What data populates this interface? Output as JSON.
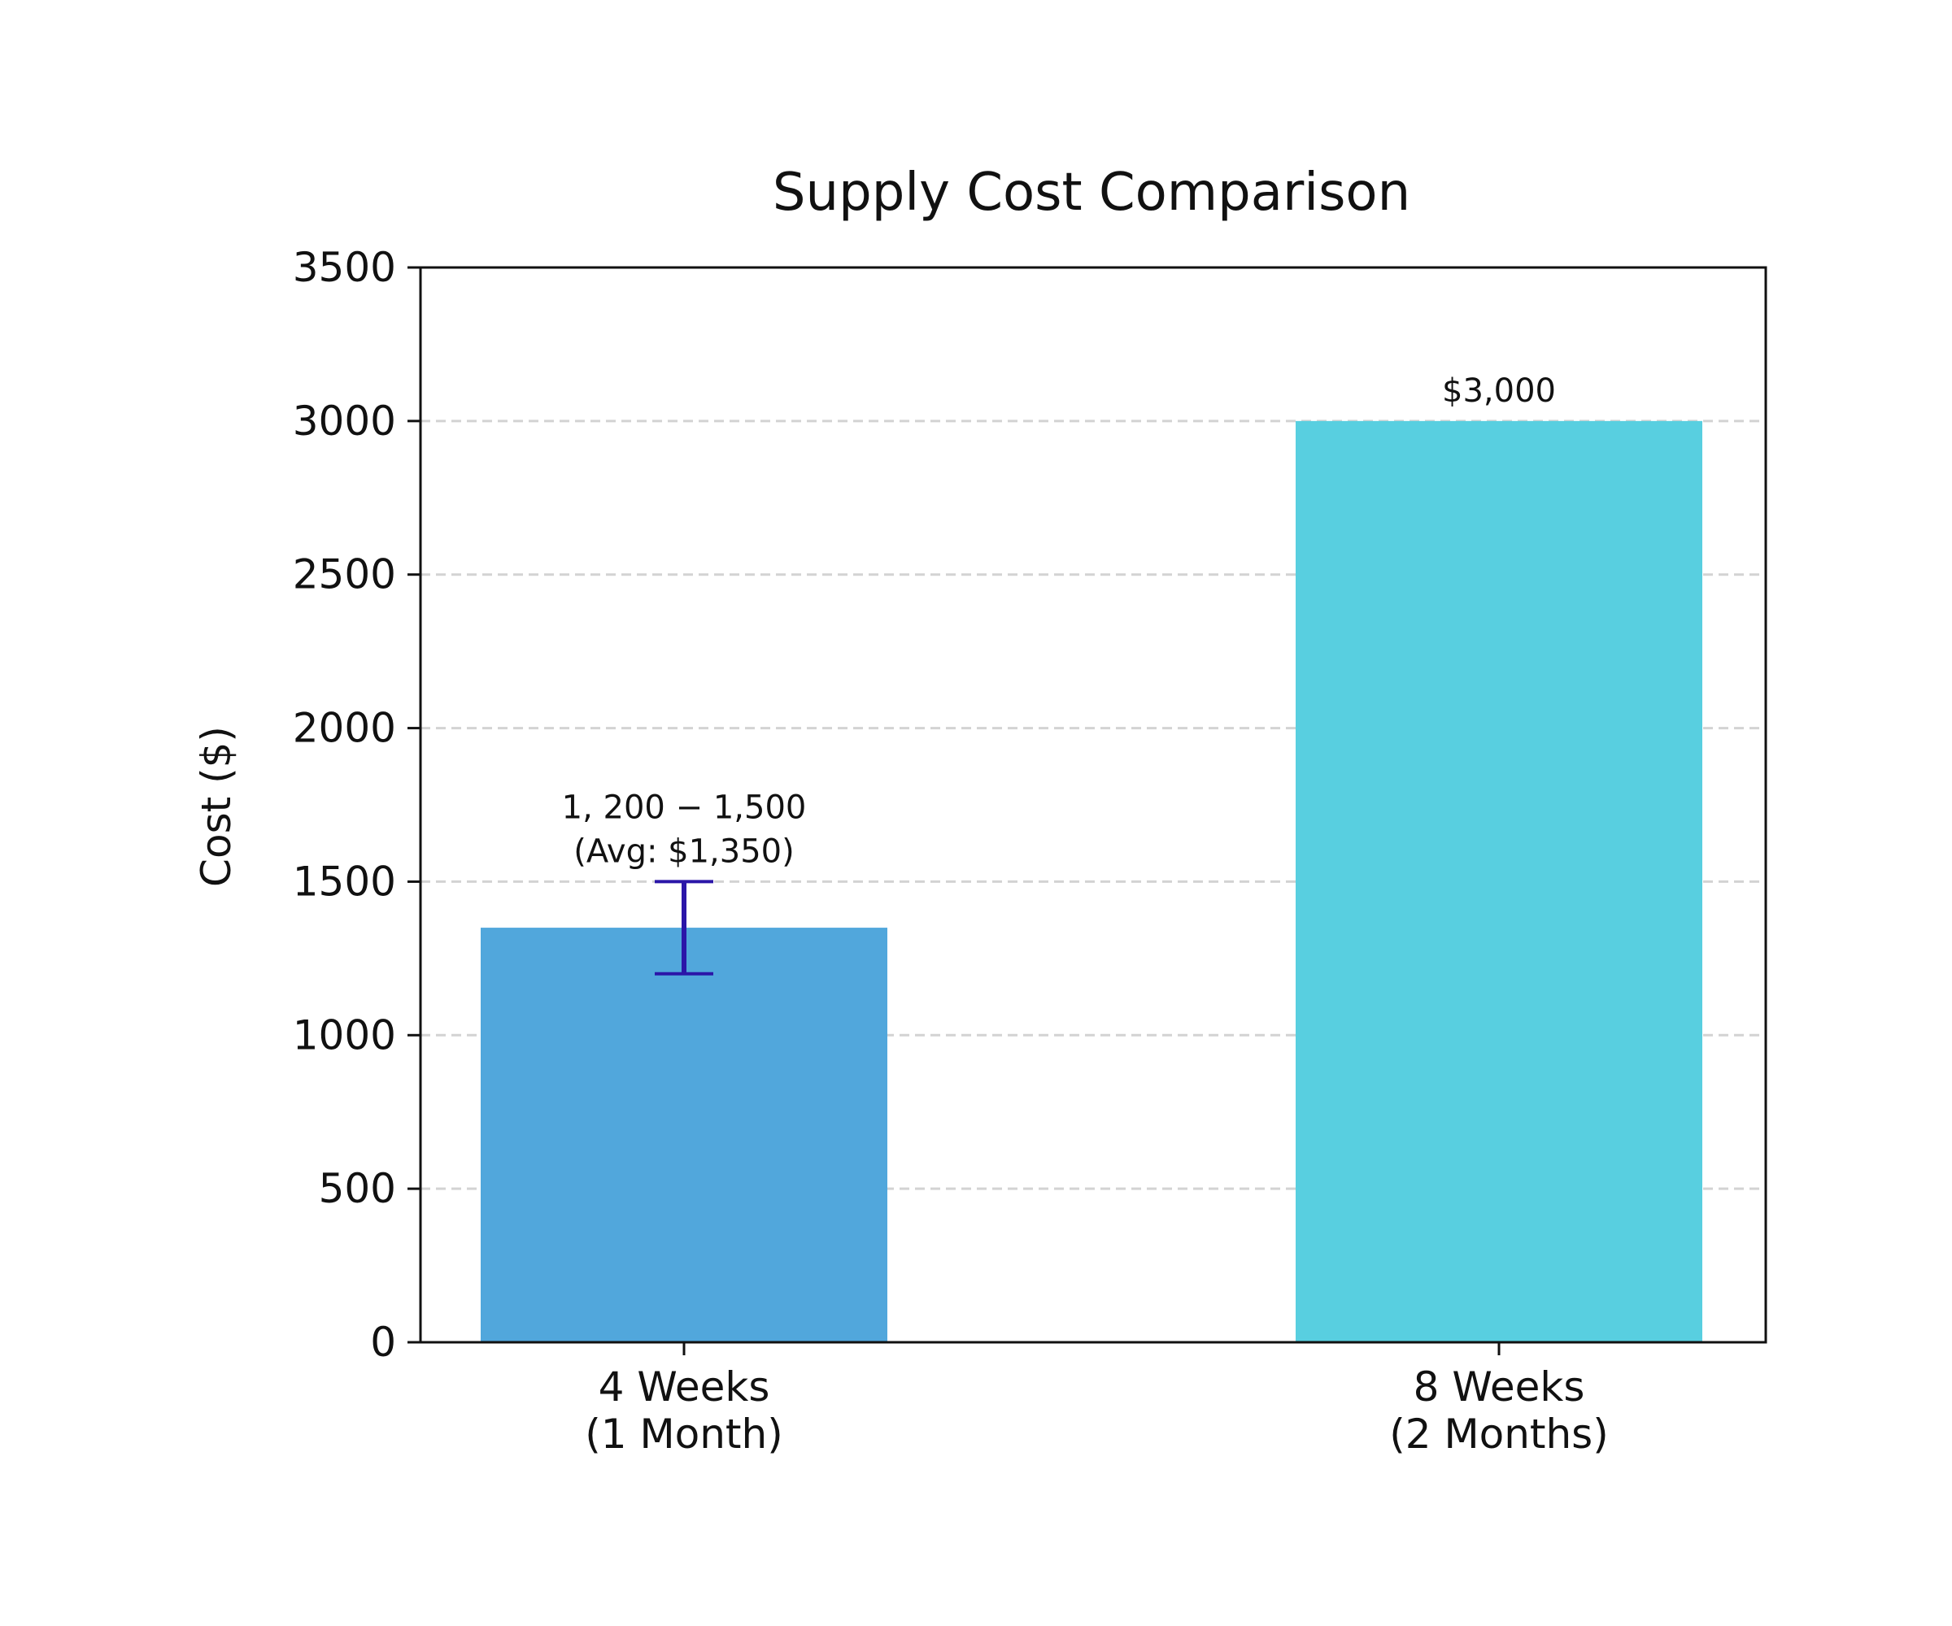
{
  "chart_data": {
    "type": "bar",
    "title": "Supply Cost Comparison",
    "xlabel": "",
    "ylabel": "Cost ($)",
    "categories": [
      [
        "4 Weeks",
        "(1 Month)"
      ],
      [
        "8 Weeks",
        "(2 Months)"
      ]
    ],
    "values": [
      1350,
      3000
    ],
    "error_ranges": [
      [
        1200,
        1500
      ],
      null
    ],
    "data_labels": [
      [
        "1, 200 − 1,500",
        "(Avg: $1,350)"
      ],
      [
        "$3,000"
      ]
    ],
    "colors": [
      "#51a7dc",
      "#58cfe0"
    ],
    "error_color": "#2b16a8",
    "ylim": [
      0,
      3500
    ],
    "yticks": [
      0,
      500,
      1000,
      1500,
      2000,
      2500,
      3000,
      3500
    ],
    "grid": "y-dashed"
  }
}
